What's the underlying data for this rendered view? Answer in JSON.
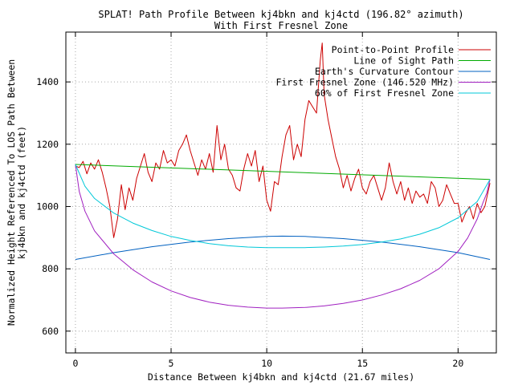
{
  "chart_data": {
    "type": "line",
    "title": "SPLAT! Path Profile Between kj4bkn and kj4ctd (196.82° azimuth)",
    "subtitle": "With First Fresnel Zone",
    "xlabel": "Distance Between kj4bkn and kj4ctd (21.67 miles)",
    "ylabel_line1": "Normalized Height Referenced To LOS Path Between",
    "ylabel_line2": "kj4bkn and kj4ctd (feet)",
    "xlim": [
      -0.5,
      22
    ],
    "ylim": [
      530,
      1560
    ],
    "grid": true,
    "legend_position": "top-right",
    "x_ticks": [
      0,
      5,
      10,
      15,
      20
    ],
    "y_ticks": [
      600,
      800,
      1000,
      1200,
      1400
    ],
    "x_tick_labels": [
      "0",
      "5",
      "10",
      "15",
      "20"
    ],
    "y_tick_labels": [
      "600",
      "800",
      "1000",
      "1200",
      "1400"
    ],
    "series": [
      {
        "name": "Point-to-Point Profile",
        "color": "#cc0000",
        "x": [
          0,
          0.2,
          0.4,
          0.6,
          0.8,
          1.0,
          1.2,
          1.4,
          1.6,
          1.8,
          2.0,
          2.2,
          2.4,
          2.6,
          2.8,
          3.0,
          3.2,
          3.4,
          3.6,
          3.8,
          4.0,
          4.2,
          4.4,
          4.6,
          4.8,
          5.0,
          5.2,
          5.4,
          5.6,
          5.8,
          6.0,
          6.2,
          6.4,
          6.6,
          6.8,
          7.0,
          7.2,
          7.4,
          7.6,
          7.8,
          8.0,
          8.2,
          8.4,
          8.6,
          8.8,
          9.0,
          9.2,
          9.4,
          9.6,
          9.8,
          10.0,
          10.2,
          10.4,
          10.6,
          10.8,
          11.0,
          11.2,
          11.4,
          11.6,
          11.8,
          12.0,
          12.2,
          12.4,
          12.6,
          12.8,
          12.9,
          13.0,
          13.2,
          13.4,
          13.6,
          13.8,
          14.0,
          14.2,
          14.4,
          14.6,
          14.8,
          15.0,
          15.2,
          15.4,
          15.6,
          15.8,
          16.0,
          16.2,
          16.4,
          16.6,
          16.8,
          17.0,
          17.2,
          17.4,
          17.6,
          17.8,
          18.0,
          18.2,
          18.4,
          18.6,
          18.8,
          19.0,
          19.2,
          19.4,
          19.6,
          19.8,
          20.0,
          20.2,
          20.4,
          20.6,
          20.8,
          21.0,
          21.2,
          21.4,
          21.67
        ],
        "values": [
          1130,
          1125,
          1145,
          1105,
          1140,
          1120,
          1150,
          1110,
          1060,
          1000,
          900,
          960,
          1070,
          990,
          1060,
          1020,
          1090,
          1130,
          1170,
          1110,
          1080,
          1140,
          1120,
          1180,
          1140,
          1150,
          1130,
          1180,
          1200,
          1230,
          1180,
          1140,
          1100,
          1150,
          1120,
          1170,
          1110,
          1260,
          1150,
          1200,
          1120,
          1100,
          1060,
          1050,
          1120,
          1170,
          1130,
          1180,
          1080,
          1130,
          1020,
          985,
          1080,
          1070,
          1160,
          1230,
          1260,
          1150,
          1200,
          1160,
          1280,
          1340,
          1320,
          1300,
          1470,
          1525,
          1360,
          1280,
          1220,
          1160,
          1120,
          1060,
          1100,
          1050,
          1090,
          1120,
          1060,
          1040,
          1080,
          1100,
          1060,
          1020,
          1060,
          1140,
          1080,
          1040,
          1080,
          1020,
          1060,
          1010,
          1050,
          1030,
          1040,
          1010,
          1080,
          1060,
          1000,
          1020,
          1070,
          1040,
          1010,
          1010,
          950,
          980,
          1000,
          960,
          1010,
          980,
          1000,
          1075
        ]
      },
      {
        "name": "Line of Sight Path",
        "color": "#00aa00",
        "x": [
          0,
          21.67
        ],
        "values": [
          1135,
          1087
        ]
      },
      {
        "name": "Earth's Curvature Contour",
        "color": "#0060c0",
        "x": [
          0,
          2,
          4,
          6,
          8,
          10,
          10.8,
          12,
          14,
          16,
          18,
          20,
          21.67
        ],
        "values": [
          830,
          852,
          871,
          886,
          897,
          904,
          905,
          904,
          897,
          886,
          871,
          852,
          830
        ]
      },
      {
        "name": "First Fresnel Zone (146.520 MHz)",
        "color": "#a020c0",
        "x": [
          0,
          0.2,
          0.5,
          1,
          2,
          3,
          4,
          5,
          6,
          7,
          8,
          9,
          10,
          10.8,
          12,
          13,
          14,
          15,
          16,
          17,
          18,
          19,
          20,
          20.5,
          21,
          21.3,
          21.5,
          21.67
        ],
        "values": [
          1135,
          1048,
          985,
          922,
          848,
          797,
          758,
          729,
          708,
          693,
          683,
          677,
          674,
          674,
          676,
          681,
          689,
          700,
          716,
          736,
          763,
          800,
          856,
          899,
          960,
          1012,
          1043,
          1087
        ]
      },
      {
        "name": "60% of First Fresnel Zone",
        "color": "#00c8d8",
        "x": [
          0,
          0.5,
          1,
          2,
          3,
          4,
          5,
          6,
          7,
          8,
          9,
          10,
          10.8,
          12,
          13,
          14,
          15,
          16,
          17,
          18,
          19,
          20,
          21,
          21.67
        ],
        "values": [
          1135,
          1065,
          1026,
          979,
          947,
          923,
          904,
          891,
          881,
          874,
          870,
          868,
          868,
          868,
          870,
          873,
          878,
          886,
          896,
          911,
          932,
          964,
          1016,
          1087
        ]
      }
    ],
    "legend_entries": [
      "Point-to-Point Profile",
      "Line of Sight Path",
      "Earth's Curvature Contour",
      "First Fresnel Zone (146.520 MHz)",
      "60% of First Fresnel Zone"
    ]
  }
}
